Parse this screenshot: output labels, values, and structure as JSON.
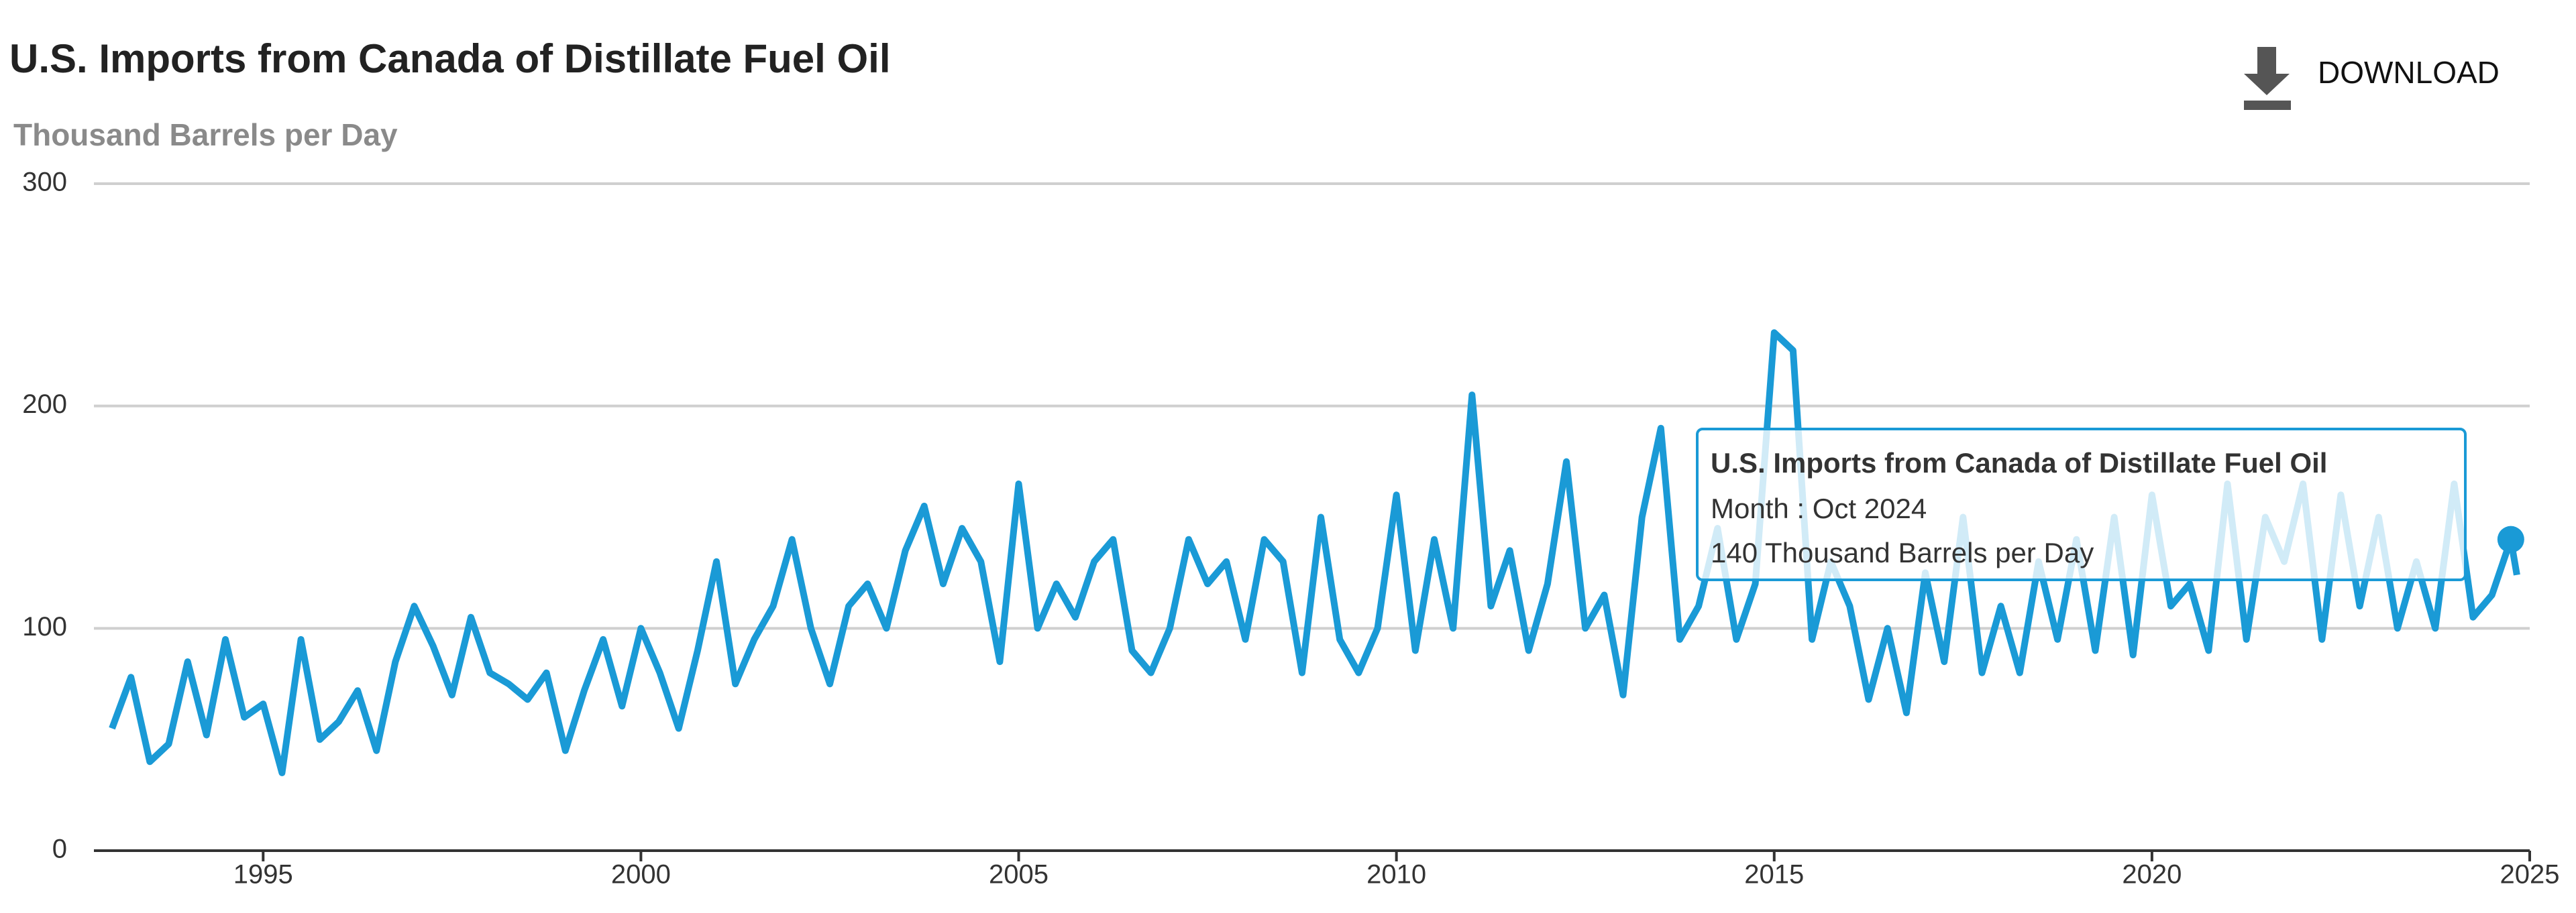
{
  "toolbar": {
    "download": "DOWNLOAD"
  },
  "chart_data": {
    "type": "line",
    "title": "U.S. Imports from Canada of Distillate Fuel Oil",
    "subtitle": "Thousand Barrels per Day",
    "x": [
      1993,
      1993.25,
      1993.5,
      1993.75,
      1994,
      1994.25,
      1994.5,
      1994.75,
      1995,
      1995.25,
      1995.5,
      1995.75,
      1996,
      1996.25,
      1996.5,
      1996.75,
      1997,
      1997.25,
      1997.5,
      1997.75,
      1998,
      1998.25,
      1998.5,
      1998.75,
      1999,
      1999.25,
      1999.5,
      1999.75,
      2000,
      2000.25,
      2000.5,
      2000.75,
      2001,
      2001.25,
      2001.5,
      2001.75,
      2002,
      2002.25,
      2002.5,
      2002.75,
      2003,
      2003.25,
      2003.5,
      2003.75,
      2004,
      2004.25,
      2004.5,
      2004.75,
      2005,
      2005.25,
      2005.5,
      2005.75,
      2006,
      2006.25,
      2006.5,
      2006.75,
      2007,
      2007.25,
      2007.5,
      2007.75,
      2008,
      2008.25,
      2008.5,
      2008.75,
      2009,
      2009.25,
      2009.5,
      2009.75,
      2010,
      2010.25,
      2010.5,
      2010.75,
      2011,
      2011.25,
      2011.5,
      2011.75,
      2012,
      2012.25,
      2012.5,
      2012.75,
      2013,
      2013.25,
      2013.5,
      2013.75,
      2014,
      2014.25,
      2014.5,
      2014.75,
      2015,
      2015.25,
      2015.5,
      2015.75,
      2016,
      2016.25,
      2016.5,
      2016.75,
      2017,
      2017.25,
      2017.5,
      2017.75,
      2018,
      2018.25,
      2018.5,
      2018.75,
      2019,
      2019.25,
      2019.5,
      2019.75,
      2020,
      2020.25,
      2020.5,
      2020.75,
      2021,
      2021.25,
      2021.5,
      2021.75,
      2022,
      2022.25,
      2022.5,
      2022.75,
      2023,
      2023.25,
      2023.5,
      2023.75,
      2024,
      2024.25,
      2024.5,
      2024.75,
      2024.83
    ],
    "series": [
      {
        "name": "U.S. Imports from Canada of Distillate Fuel Oil",
        "color": "#1a9ad6",
        "values": [
          55,
          78,
          40,
          48,
          85,
          52,
          95,
          60,
          66,
          35,
          95,
          50,
          58,
          72,
          45,
          85,
          110,
          92,
          70,
          105,
          80,
          75,
          68,
          80,
          45,
          72,
          95,
          65,
          100,
          80,
          55,
          90,
          130,
          75,
          95,
          110,
          140,
          100,
          75,
          110,
          120,
          100,
          135,
          155,
          120,
          145,
          130,
          85,
          165,
          100,
          120,
          105,
          130,
          140,
          90,
          80,
          100,
          140,
          120,
          130,
          95,
          140,
          130,
          80,
          150,
          95,
          80,
          100,
          160,
          90,
          140,
          100,
          205,
          110,
          135,
          90,
          120,
          175,
          100,
          115,
          70,
          150,
          190,
          95,
          110,
          145,
          95,
          120,
          233,
          225,
          95,
          130,
          110,
          68,
          100,
          62,
          125,
          85,
          150,
          80,
          110,
          80,
          130,
          95,
          140,
          90,
          150,
          88,
          160,
          110,
          120,
          90,
          165,
          95,
          150,
          130,
          165,
          95,
          160,
          110,
          150,
          100,
          130,
          100,
          165,
          105,
          115,
          140,
          124
        ]
      }
    ],
    "xlim": [
      1992.76,
      2025.0
    ],
    "xticks": [
      1995,
      2000,
      2005,
      2010,
      2015,
      2020,
      2025
    ],
    "ylim": [
      0,
      300
    ],
    "yticks": [
      0,
      100,
      200,
      300
    ],
    "grid": true,
    "tooltip": {
      "x": 2024.75,
      "title": "U.S. Imports from Canada of Distillate Fuel Oil",
      "lines": [
        "Month : Oct 2024",
        "140 Thousand Barrels per Day"
      ]
    }
  }
}
